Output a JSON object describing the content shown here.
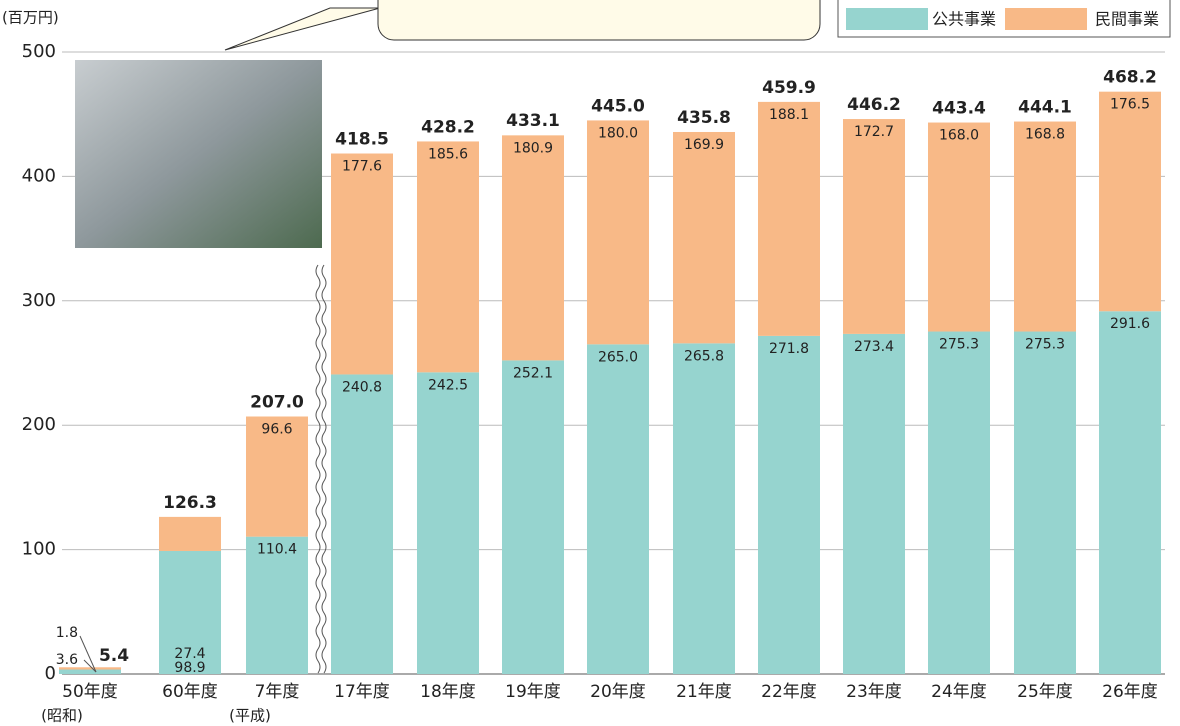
{
  "chart_data": {
    "type": "stacked-bar",
    "y_label": "(百万円)",
    "annotations": [
      "(昭和)",
      "(平成)"
    ],
    "categories": [
      "50年度",
      "60年度",
      "7年度",
      "17年度",
      "18年度",
      "19年度",
      "20年度",
      "21年度",
      "22年度",
      "23年度",
      "24年度",
      "25年度",
      "26年度"
    ],
    "series": [
      {
        "name": "公共事業",
        "color": "#96d4cf",
        "values": [
          3.6,
          98.9,
          110.4,
          240.8,
          242.5,
          252.1,
          265.0,
          265.8,
          271.8,
          273.4,
          275.3,
          275.3,
          291.6
        ],
        "value_labels": [
          "3.6",
          "98.9",
          "110.4",
          "240.8",
          "242.5",
          "252.1",
          "265.0",
          "265.8",
          "271.8",
          "273.4",
          "275.3",
          "275.3",
          "291.6"
        ]
      },
      {
        "name": "民間事業",
        "color": "#f8b987",
        "values": [
          1.8,
          27.4,
          96.6,
          177.6,
          185.6,
          180.9,
          180.0,
          169.9,
          188.1,
          172.7,
          168.0,
          168.8,
          176.5
        ],
        "value_labels": [
          "1.8",
          "27.4",
          "96.6",
          "177.6",
          "185.6",
          "180.9",
          "180.0",
          "169.9",
          "188.1",
          "172.7",
          "168.0",
          "168.8",
          "176.5"
        ]
      }
    ],
    "totals": {
      "values": [
        5.4,
        126.3,
        207.0,
        418.5,
        428.2,
        433.1,
        445.0,
        435.8,
        459.9,
        446.2,
        443.4,
        444.1,
        468.2
      ],
      "value_labels": [
        "5.4",
        "126.3",
        "207.0",
        "418.5",
        "428.2",
        "433.1",
        "445.0",
        "435.8",
        "459.9",
        "446.2",
        "443.4",
        "444.1",
        "468.2"
      ]
    },
    "ylim": [
      0,
      500
    ],
    "yticks": [
      0,
      100,
      200,
      300,
      400,
      500
    ],
    "grid": true
  }
}
